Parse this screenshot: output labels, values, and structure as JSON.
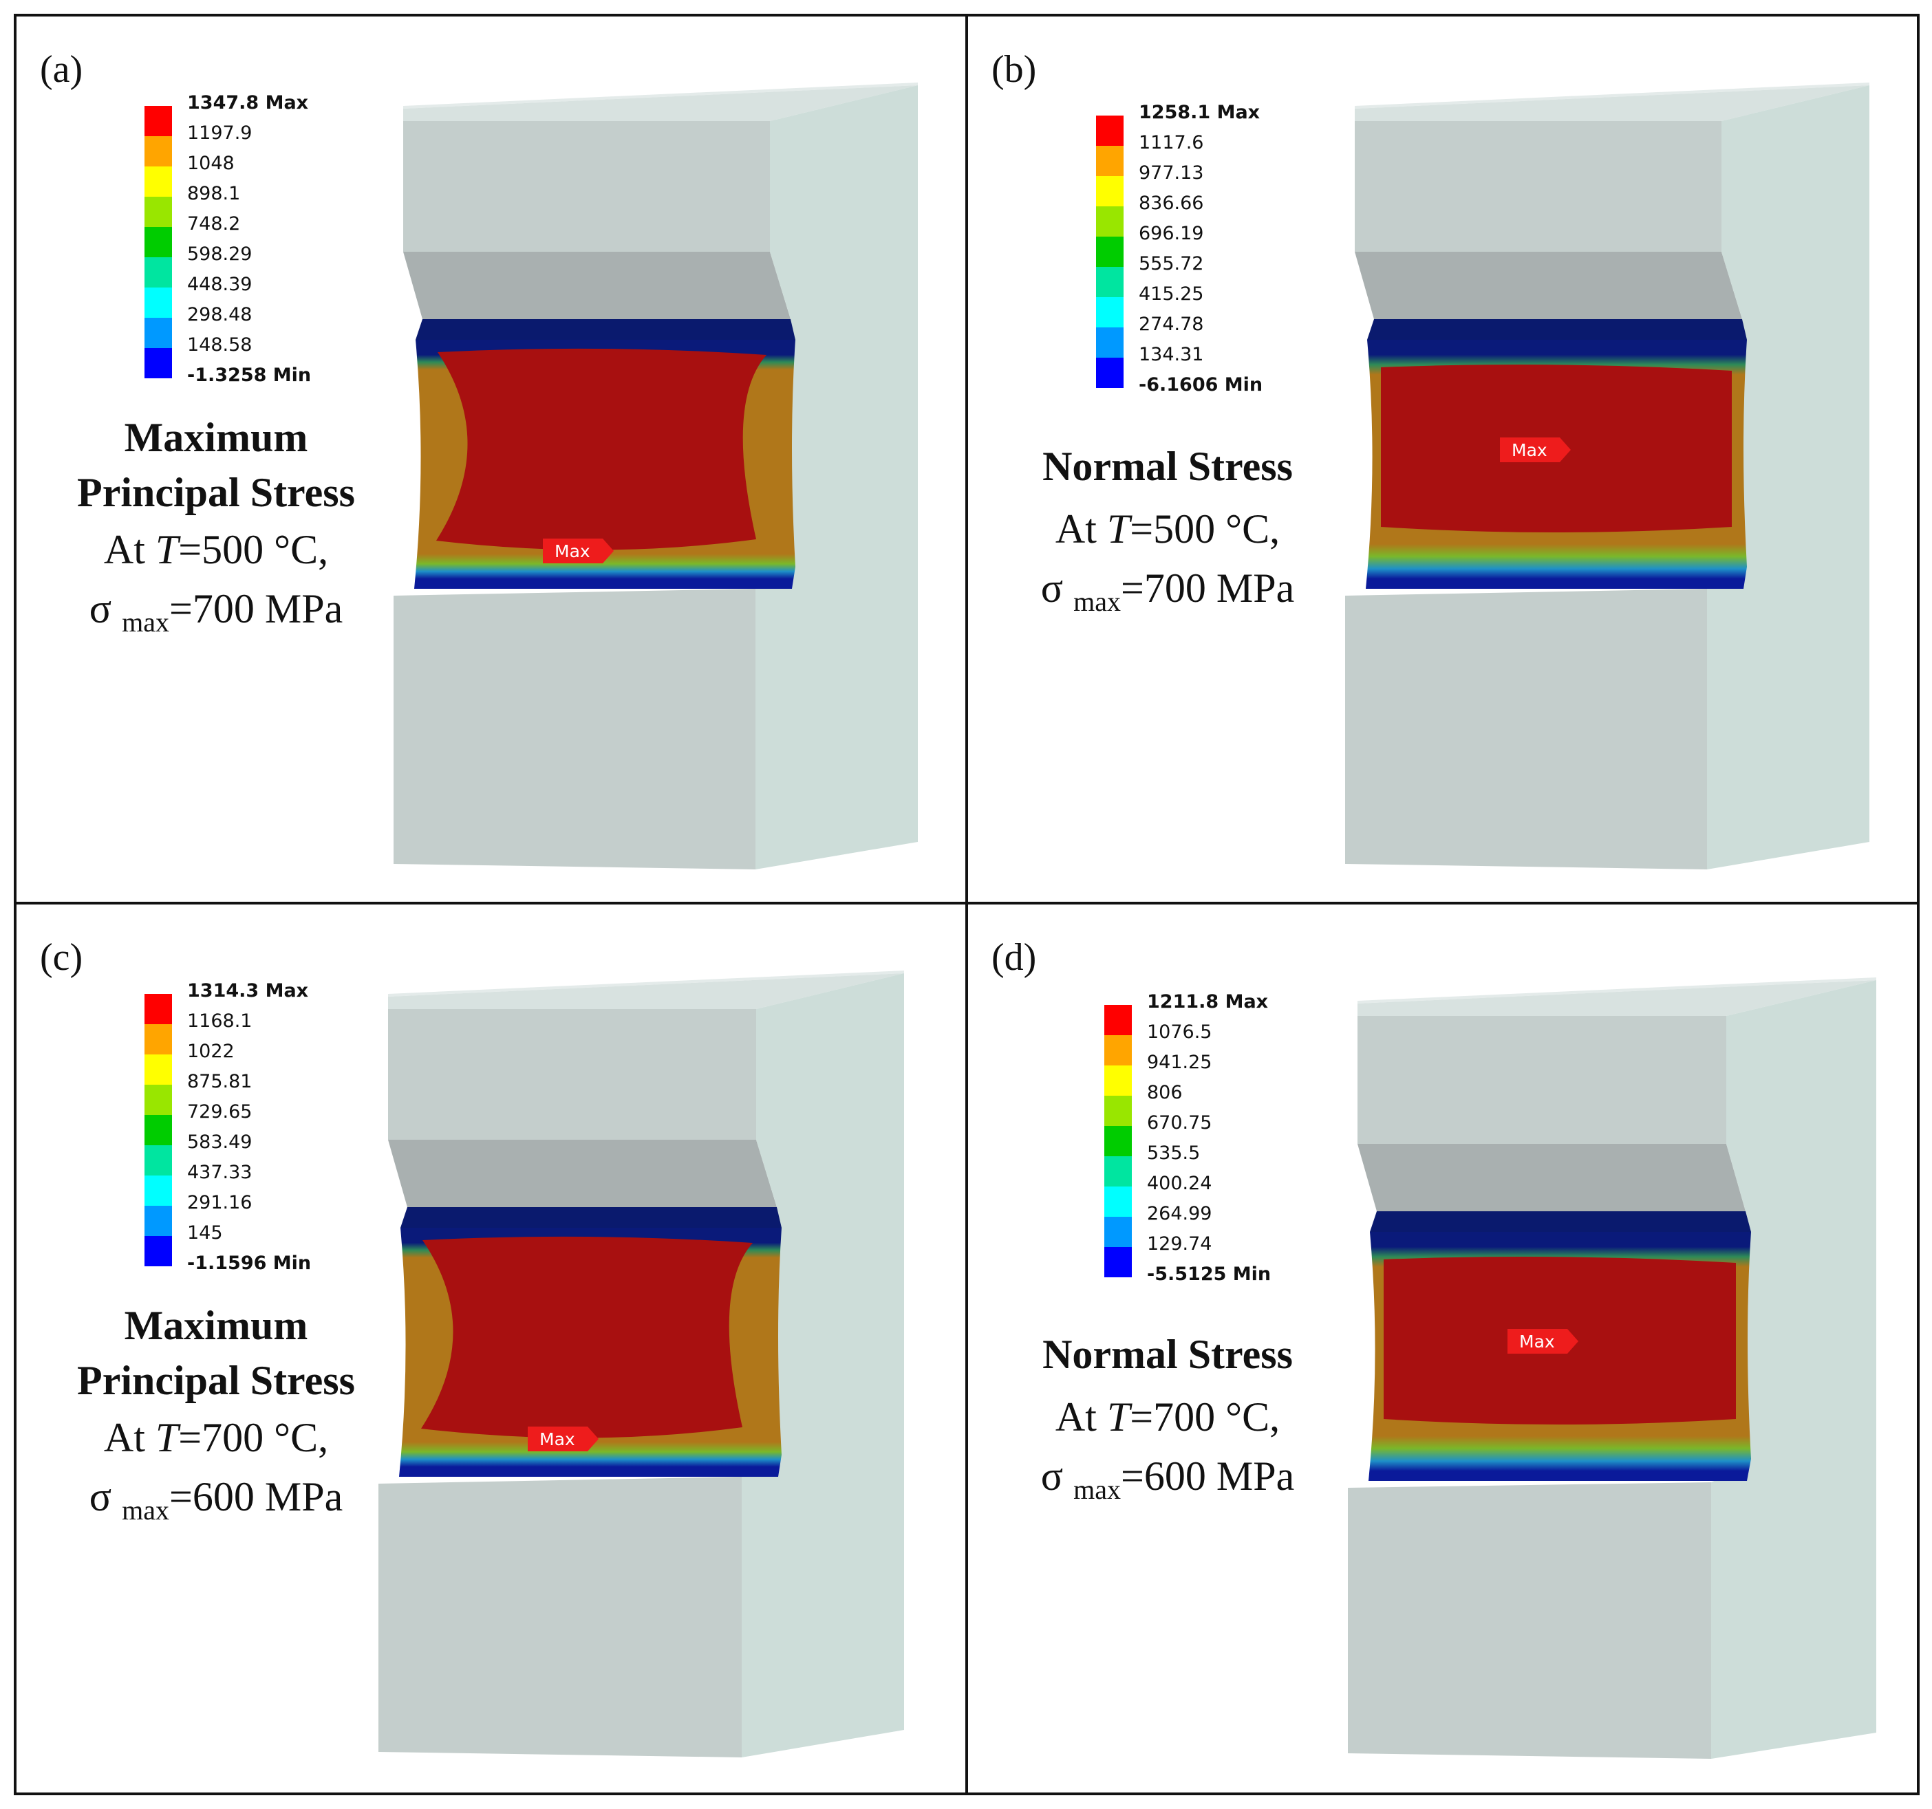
{
  "panels": [
    {
      "label": "(a)",
      "legend": [
        "1347.8 Max",
        "1197.9",
        "1048",
        "898.1",
        "748.2",
        "598.29",
        "448.39",
        "298.48",
        "148.58",
        "-1.3258 Min"
      ],
      "title_lines": [
        "Maximum",
        "Principal Stress"
      ],
      "temp_prefix": "At ",
      "temp_var": "T",
      "temp_value": "=500 °C,",
      "sigma_symbol": "σ",
      "sigma_sub": "max",
      "sigma_value": "=700 MPa",
      "max_tag": "Max"
    },
    {
      "label": "(b)",
      "legend": [
        "1258.1 Max",
        "1117.6",
        "977.13",
        "836.66",
        "696.19",
        "555.72",
        "415.25",
        "274.78",
        "134.31",
        "-6.1606 Min"
      ],
      "title_lines": [
        "Normal Stress"
      ],
      "temp_prefix": "At ",
      "temp_var": "T",
      "temp_value": "=500 °C,",
      "sigma_symbol": "σ",
      "sigma_sub": "max",
      "sigma_value": "=700 MPa",
      "max_tag": "Max"
    },
    {
      "label": "(c)",
      "legend": [
        "1314.3 Max",
        "1168.1",
        "1022",
        "875.81",
        "729.65",
        "583.49",
        "437.33",
        "291.16",
        "145",
        "-1.1596 Min"
      ],
      "title_lines": [
        "Maximum",
        "Principal Stress"
      ],
      "temp_prefix": "At ",
      "temp_var": "T",
      "temp_value": "=700 °C,",
      "sigma_symbol": "σ",
      "sigma_sub": "max",
      "sigma_value": "=600 MPa",
      "max_tag": "Max"
    },
    {
      "label": "(d)",
      "legend": [
        "1211.8 Max",
        "1076.5",
        "941.25",
        "806",
        "670.75",
        "535.5",
        "400.24",
        "264.99",
        "129.74",
        "-5.5125 Min"
      ],
      "title_lines": [
        "Normal Stress"
      ],
      "temp_prefix": "At ",
      "temp_var": "T",
      "temp_value": "=700 °C,",
      "sigma_symbol": "σ",
      "sigma_sub": "max",
      "sigma_value": "=600 MPa",
      "max_tag": "Max"
    }
  ],
  "legend_colors": [
    "#ff0000",
    "#ffa500",
    "#ffff00",
    "#99e600",
    "#00cc00",
    "#00e5a0",
    "#00ffff",
    "#0099ff",
    "#0000ff"
  ]
}
